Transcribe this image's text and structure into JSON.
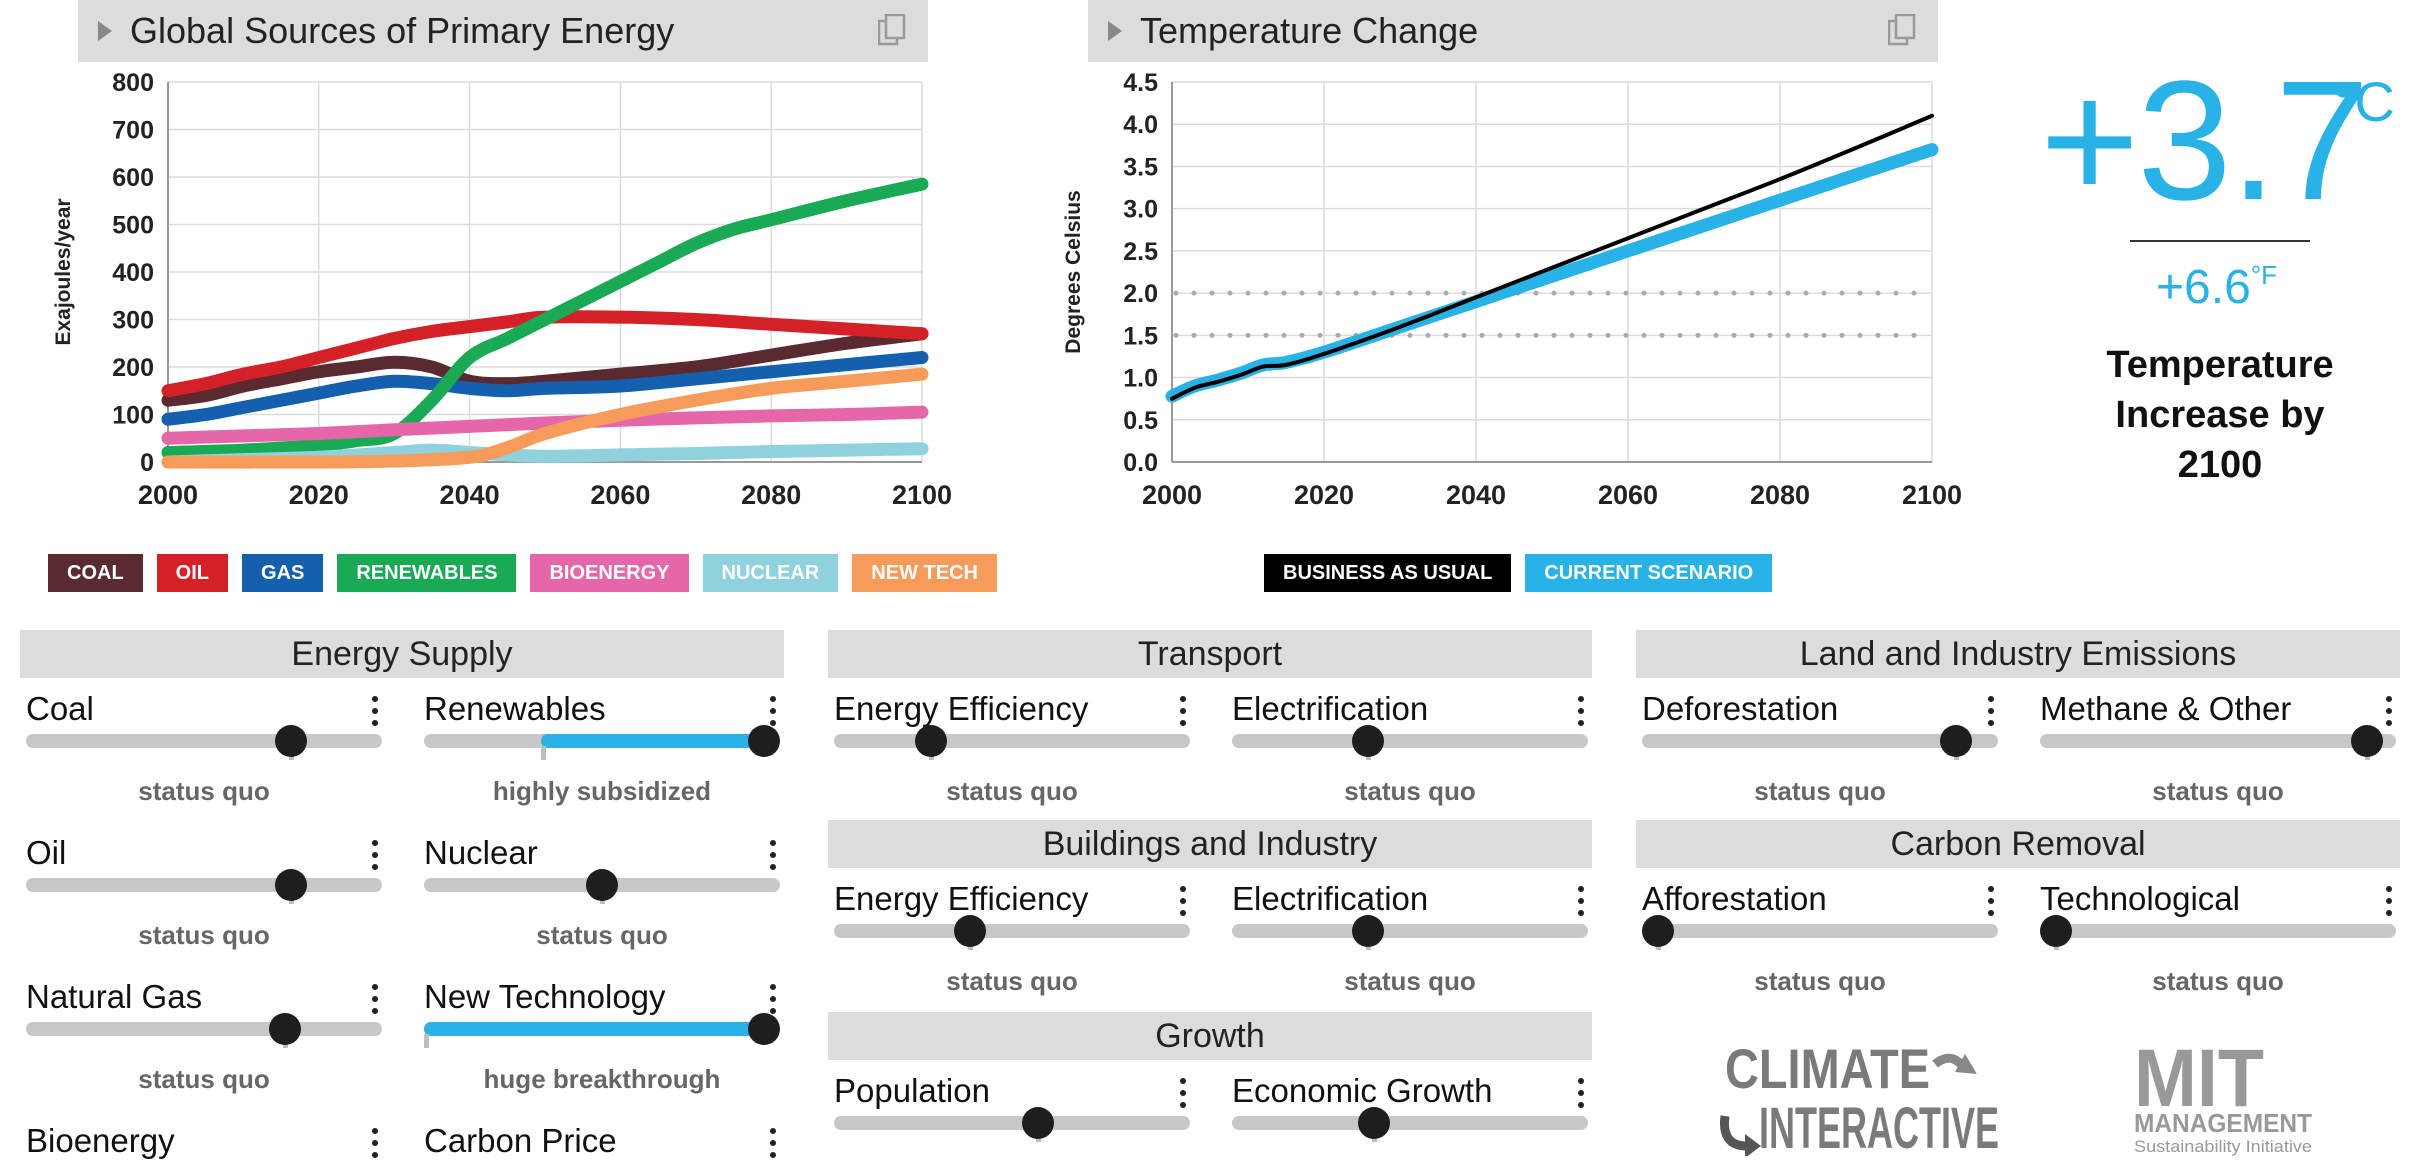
{
  "energy_chart": {
    "title": "Global Sources of Primary Energy",
    "chart_data": {
      "type": "line",
      "title": "Global Sources of Primary Energy",
      "xlabel": "",
      "ylabel": "Exajoules/year",
      "xlim": [
        2000,
        2100
      ],
      "ylim": [
        0,
        800
      ],
      "xticks": [
        2000,
        2020,
        2040,
        2060,
        2080,
        2100
      ],
      "yticks": [
        0,
        100,
        200,
        300,
        400,
        500,
        600,
        700,
        800
      ],
      "grid": true,
      "legend": "bottom",
      "series": [
        {
          "name": "COAL",
          "color": "#5b2a30",
          "x": [
            2000,
            2005,
            2010,
            2015,
            2020,
            2025,
            2030,
            2035,
            2040,
            2045,
            2050,
            2060,
            2070,
            2080,
            2090,
            2100
          ],
          "y": [
            130,
            140,
            160,
            175,
            190,
            200,
            210,
            200,
            170,
            165,
            170,
            185,
            200,
            225,
            250,
            270
          ]
        },
        {
          "name": "OIL",
          "color": "#d42027",
          "x": [
            2000,
            2005,
            2010,
            2015,
            2020,
            2025,
            2030,
            2035,
            2040,
            2045,
            2050,
            2060,
            2070,
            2080,
            2090,
            2100
          ],
          "y": [
            150,
            165,
            185,
            200,
            220,
            240,
            260,
            275,
            285,
            295,
            305,
            305,
            300,
            290,
            280,
            270
          ]
        },
        {
          "name": "GAS",
          "color": "#1560ae",
          "x": [
            2000,
            2005,
            2010,
            2015,
            2020,
            2025,
            2030,
            2035,
            2040,
            2045,
            2050,
            2060,
            2070,
            2080,
            2090,
            2100
          ],
          "y": [
            90,
            100,
            115,
            130,
            145,
            160,
            170,
            165,
            155,
            150,
            155,
            160,
            175,
            190,
            205,
            220
          ]
        },
        {
          "name": "RENEWABLES",
          "color": "#1aaa55",
          "x": [
            2000,
            2010,
            2020,
            2025,
            2030,
            2035,
            2040,
            2045,
            2050,
            2055,
            2060,
            2065,
            2070,
            2075,
            2080,
            2090,
            2100
          ],
          "y": [
            20,
            25,
            35,
            45,
            60,
            130,
            220,
            260,
            300,
            340,
            380,
            420,
            460,
            490,
            510,
            550,
            585
          ]
        },
        {
          "name": "BIOENERGY",
          "color": "#e667a9",
          "x": [
            2000,
            2010,
            2020,
            2030,
            2040,
            2050,
            2060,
            2070,
            2080,
            2090,
            2100
          ],
          "y": [
            50,
            55,
            60,
            68,
            75,
            82,
            88,
            93,
            97,
            100,
            105
          ]
        },
        {
          "name": "NUCLEAR",
          "color": "#8fd2de",
          "x": [
            2000,
            2010,
            2020,
            2030,
            2035,
            2040,
            2045,
            2050,
            2060,
            2070,
            2080,
            2090,
            2100
          ],
          "y": [
            0,
            5,
            10,
            20,
            25,
            20,
            15,
            12,
            15,
            18,
            22,
            25,
            28
          ]
        },
        {
          "name": "NEW TECH",
          "color": "#f79b5a",
          "x": [
            2000,
            2020,
            2030,
            2040,
            2045,
            2050,
            2060,
            2070,
            2080,
            2090,
            2100
          ],
          "y": [
            0,
            0,
            2,
            10,
            30,
            60,
            100,
            130,
            155,
            170,
            185
          ]
        }
      ]
    }
  },
  "temp_chart": {
    "title": "Temperature Change",
    "chart_data": {
      "type": "line",
      "title": "Temperature Change",
      "xlabel": "",
      "ylabel": "Degrees Celsius",
      "xlim": [
        2000,
        2100
      ],
      "ylim": [
        0,
        4.5
      ],
      "xticks": [
        2000,
        2020,
        2040,
        2060,
        2080,
        2100
      ],
      "yticks": [
        "0.0",
        "0.5",
        "1.0",
        "1.5",
        "2.0",
        "2.5",
        "3.0",
        "3.5",
        "4.0",
        "4.5"
      ],
      "grid": true,
      "legend": "bottom",
      "reference_lines": [
        1.5,
        2.0
      ],
      "series": [
        {
          "name": "CURRENT SCENARIO",
          "color": "#29b2e6",
          "x": [
            2000,
            2003,
            2006,
            2009,
            2012,
            2015,
            2020,
            2030,
            2040,
            2050,
            2060,
            2070,
            2080,
            2090,
            2100
          ],
          "y": [
            0.78,
            0.9,
            0.97,
            1.05,
            1.15,
            1.18,
            1.3,
            1.6,
            1.9,
            2.2,
            2.5,
            2.8,
            3.1,
            3.4,
            3.7
          ]
        },
        {
          "name": "BUSINESS AS USUAL",
          "color": "#000000",
          "x": [
            2000,
            2003,
            2006,
            2009,
            2012,
            2015,
            2020,
            2030,
            2040,
            2050,
            2060,
            2070,
            2080,
            2090,
            2100
          ],
          "y": [
            0.75,
            0.88,
            0.95,
            1.03,
            1.13,
            1.15,
            1.28,
            1.6,
            1.95,
            2.3,
            2.65,
            3.0,
            3.35,
            3.72,
            4.1
          ]
        }
      ]
    }
  },
  "energy_legend": [
    {
      "label": "COAL",
      "color": "#5b2a30"
    },
    {
      "label": "OIL",
      "color": "#d42027"
    },
    {
      "label": "GAS",
      "color": "#1560ae"
    },
    {
      "label": "RENEWABLES",
      "color": "#1aaa55"
    },
    {
      "label": "BIOENERGY",
      "color": "#e667a9"
    },
    {
      "label": "NUCLEAR",
      "color": "#8fd2de"
    },
    {
      "label": "NEW TECH",
      "color": "#f79b5a"
    }
  ],
  "temp_legend": [
    {
      "label": "BUSINESS AS USUAL",
      "color": "#000000"
    },
    {
      "label": "CURRENT SCENARIO",
      "color": "#29b2e6"
    }
  ],
  "temperature": {
    "celsius": "+3.7",
    "celsius_unit": "°C",
    "fahrenheit": "+6.6",
    "fahrenheit_unit": "°F",
    "label": "Temperature Increase by 2100"
  },
  "sections": {
    "energy_supply": "Energy Supply",
    "transport": "Transport",
    "buildings": "Buildings and Industry",
    "growth": "Growth",
    "land": "Land and Industry Emissions",
    "carbon": "Carbon Removal"
  },
  "controls": {
    "coal": {
      "label": "Coal",
      "status": "status quo",
      "value": 0.77
    },
    "renewables": {
      "label": "Renewables",
      "status": "highly subsidized",
      "value": 1.0
    },
    "oil": {
      "label": "Oil",
      "status": "status quo",
      "value": 0.77
    },
    "nuclear": {
      "label": "Nuclear",
      "status": "status quo",
      "value": 0.5
    },
    "natural_gas": {
      "label": "Natural Gas",
      "status": "status quo",
      "value": 0.75
    },
    "new_technology": {
      "label": "New Technology",
      "status": "huge breakthrough",
      "value": 1.0
    },
    "bioenergy": {
      "label": "Bioenergy"
    },
    "carbon_price": {
      "label": "Carbon Price"
    },
    "transport_efficiency": {
      "label": "Energy Efficiency",
      "status": "status quo",
      "value": 0.25
    },
    "transport_electrification": {
      "label": "Electrification",
      "status": "status quo",
      "value": 0.37
    },
    "buildings_efficiency": {
      "label": "Energy Efficiency",
      "status": "status quo",
      "value": 0.37
    },
    "buildings_electrification": {
      "label": "Electrification",
      "status": "status quo",
      "value": 0.37
    },
    "population": {
      "label": "Population",
      "value": 0.58
    },
    "economic_growth": {
      "label": "Economic Growth",
      "value": 0.39
    },
    "deforestation": {
      "label": "Deforestation",
      "status": "status quo",
      "value": 0.92
    },
    "methane": {
      "label": "Methane & Other",
      "status": "status quo",
      "value": 0.96
    },
    "afforestation": {
      "label": "Afforestation",
      "status": "status quo",
      "value": 0.0
    },
    "technological": {
      "label": "Technological",
      "status": "status quo",
      "value": 0.0
    }
  },
  "logos": {
    "ci_line1": "CLIMATE",
    "ci_line2": "INTERACTIVE",
    "mit_line1": "MIT",
    "mit_line2": "MANAGEMENT",
    "mit_line3": "Sustainability Initiative"
  }
}
